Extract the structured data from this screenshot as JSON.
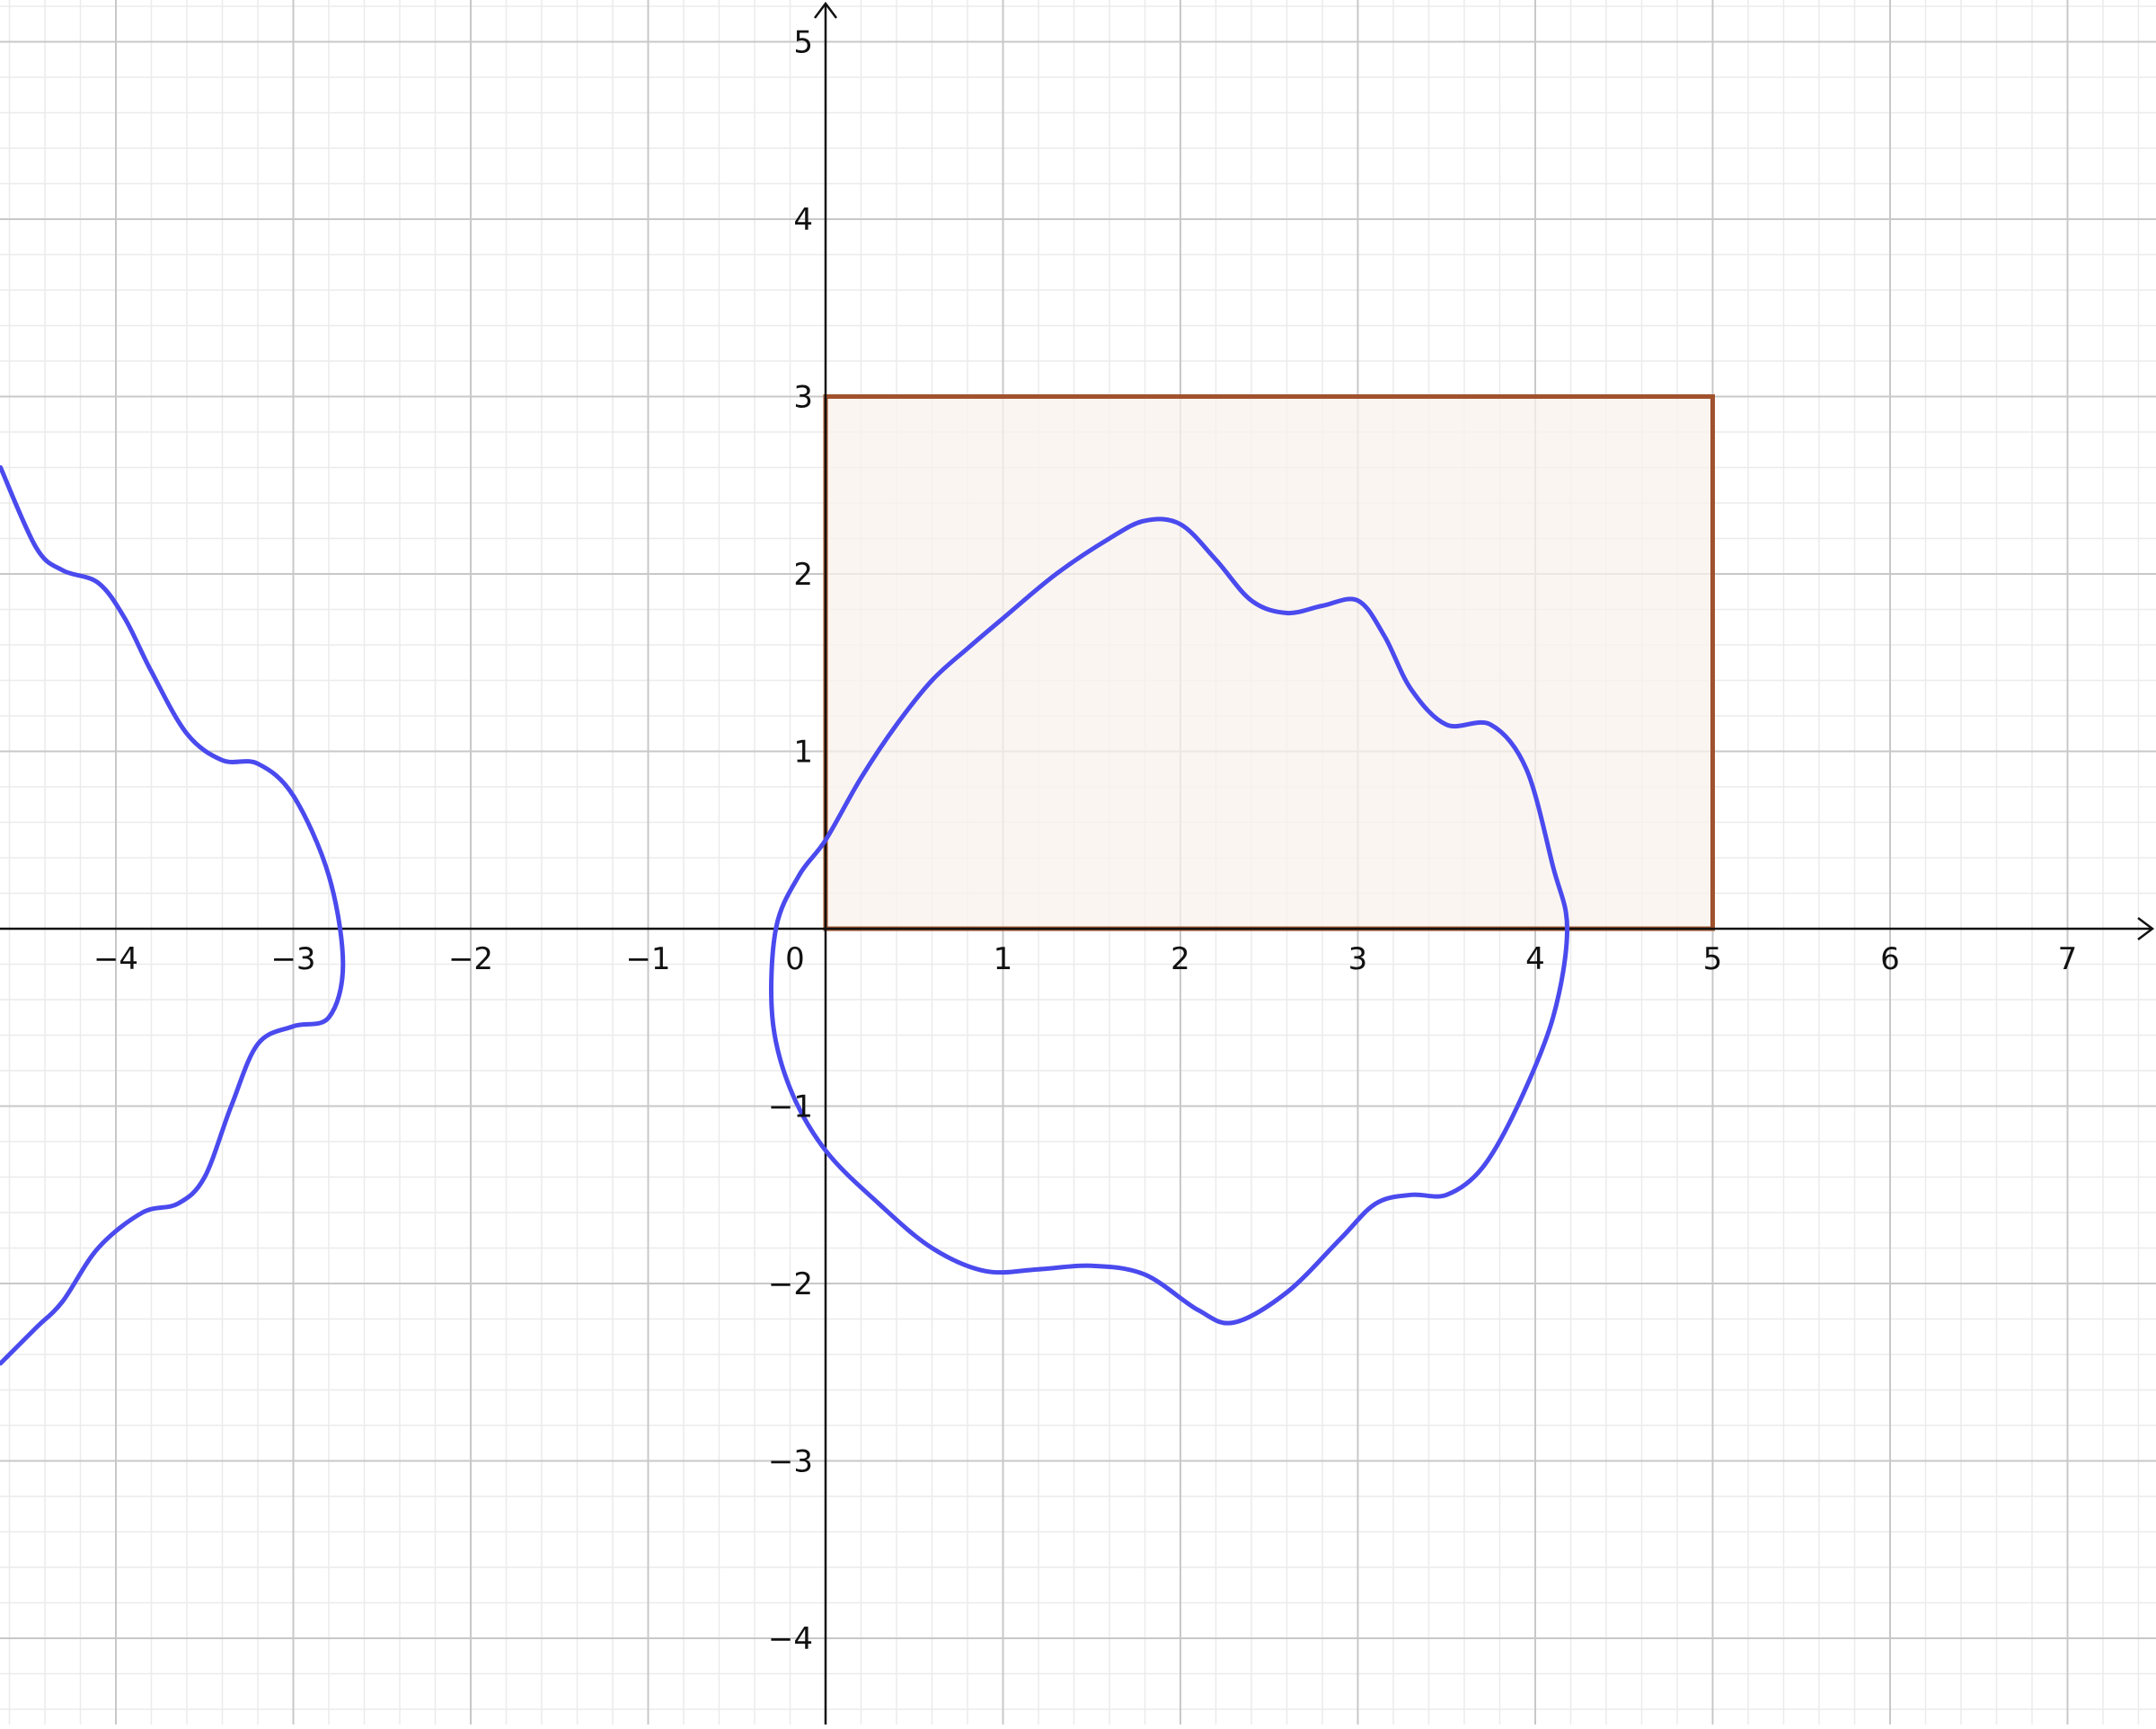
{
  "chart_data": {
    "type": "line",
    "title": "",
    "xlabel": "",
    "ylabel": "",
    "xlim": [
      -4.65,
      7.5
    ],
    "ylim": [
      -4.45,
      5.2
    ],
    "grid": true,
    "minor_grid": true,
    "x_ticks": [
      {
        "value": -4,
        "label": "−4"
      },
      {
        "value": -3,
        "label": "−3"
      },
      {
        "value": -2,
        "label": "−2"
      },
      {
        "value": -1,
        "label": "−1"
      },
      {
        "value": 0,
        "label": "0"
      },
      {
        "value": 1,
        "label": "1"
      },
      {
        "value": 2,
        "label": "2"
      },
      {
        "value": 3,
        "label": "3"
      },
      {
        "value": 4,
        "label": "4"
      },
      {
        "value": 5,
        "label": "5"
      },
      {
        "value": 6,
        "label": "6"
      },
      {
        "value": 7,
        "label": "7"
      }
    ],
    "y_ticks": [
      {
        "value": 5,
        "label": "5"
      },
      {
        "value": 4,
        "label": "4"
      },
      {
        "value": 3,
        "label": "3"
      },
      {
        "value": 2,
        "label": "2"
      },
      {
        "value": 1,
        "label": "1"
      },
      {
        "value": -1,
        "label": "−1"
      },
      {
        "value": -2,
        "label": "−2"
      },
      {
        "value": -3,
        "label": "−3"
      },
      {
        "value": -4,
        "label": "−4"
      }
    ],
    "rectangle": {
      "x": [
        0,
        5
      ],
      "y": [
        0,
        3
      ],
      "stroke": "#a0522d",
      "fill": "#f9f1ed"
    },
    "curves": [
      {
        "color": "#4a4aee",
        "closed": true,
        "points": [
          [
            0.0,
            0.5
          ],
          [
            0.2,
            0.85
          ],
          [
            0.4,
            1.15
          ],
          [
            0.6,
            1.4
          ],
          [
            0.8,
            1.58
          ],
          [
            1.0,
            1.75
          ],
          [
            1.3,
            2.0
          ],
          [
            1.6,
            2.2
          ],
          [
            1.8,
            2.3
          ],
          [
            2.0,
            2.28
          ],
          [
            2.2,
            2.08
          ],
          [
            2.4,
            1.85
          ],
          [
            2.6,
            1.78
          ],
          [
            2.8,
            1.82
          ],
          [
            3.0,
            1.85
          ],
          [
            3.15,
            1.65
          ],
          [
            3.3,
            1.35
          ],
          [
            3.5,
            1.15
          ],
          [
            3.75,
            1.15
          ],
          [
            3.95,
            0.9
          ],
          [
            4.1,
            0.35
          ],
          [
            4.18,
            0.0
          ],
          [
            4.1,
            -0.5
          ],
          [
            3.9,
            -1.0
          ],
          [
            3.7,
            -1.35
          ],
          [
            3.5,
            -1.5
          ],
          [
            3.3,
            -1.5
          ],
          [
            3.1,
            -1.55
          ],
          [
            2.9,
            -1.75
          ],
          [
            2.6,
            -2.05
          ],
          [
            2.3,
            -2.22
          ],
          [
            2.1,
            -2.15
          ],
          [
            1.8,
            -1.95
          ],
          [
            1.5,
            -1.9
          ],
          [
            1.2,
            -1.92
          ],
          [
            0.9,
            -1.93
          ],
          [
            0.6,
            -1.8
          ],
          [
            0.3,
            -1.55
          ],
          [
            0.0,
            -1.25
          ],
          [
            -0.2,
            -0.9
          ],
          [
            -0.3,
            -0.5
          ],
          [
            -0.28,
            0.0
          ],
          [
            -0.15,
            0.3
          ]
        ]
      },
      {
        "color": "#4a4aee",
        "closed": false,
        "points": [
          [
            -4.65,
            2.6
          ],
          [
            -4.45,
            2.15
          ],
          [
            -4.3,
            2.02
          ],
          [
            -4.1,
            1.95
          ],
          [
            -3.95,
            1.75
          ],
          [
            -3.8,
            1.45
          ],
          [
            -3.6,
            1.1
          ],
          [
            -3.4,
            0.95
          ],
          [
            -3.2,
            0.93
          ],
          [
            -3.0,
            0.75
          ],
          [
            -2.8,
            0.3
          ],
          [
            -2.72,
            -0.2
          ],
          [
            -2.8,
            -0.5
          ],
          [
            -3.0,
            -0.55
          ],
          [
            -3.2,
            -0.65
          ],
          [
            -3.35,
            -1.0
          ],
          [
            -3.5,
            -1.4
          ],
          [
            -3.65,
            -1.55
          ],
          [
            -3.85,
            -1.6
          ],
          [
            -4.1,
            -1.8
          ],
          [
            -4.3,
            -2.1
          ],
          [
            -4.45,
            -2.25
          ],
          [
            -4.65,
            -2.45
          ]
        ]
      }
    ]
  }
}
